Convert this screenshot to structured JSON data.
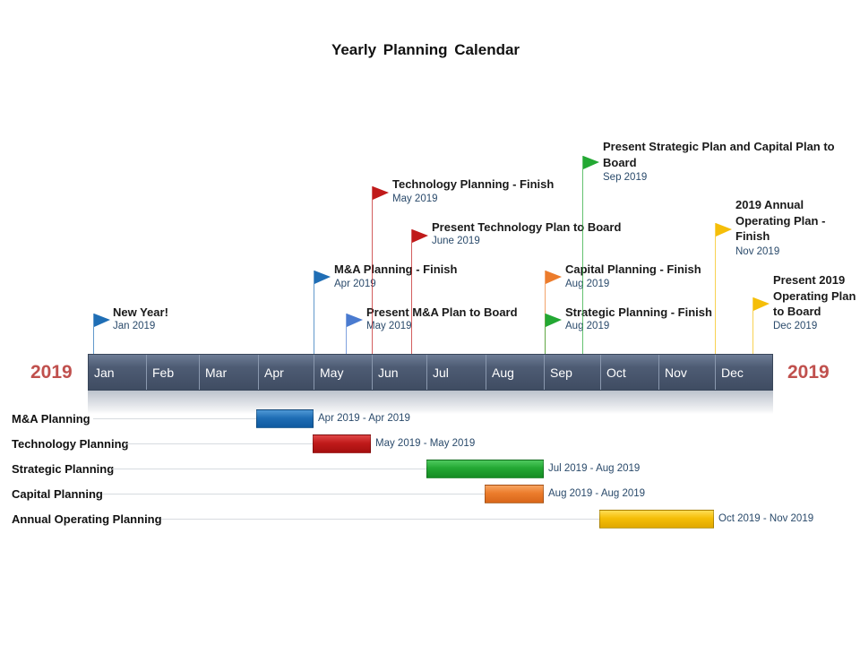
{
  "title": "Yearly Planning  Calendar",
  "year_left": "2019",
  "year_right": "2019",
  "months": [
    "Jan",
    "Feb",
    "Mar",
    "Apr",
    "May",
    "Jun",
    "Jul",
    "Aug",
    "Sep",
    "Oct",
    "Nov",
    "Dec"
  ],
  "colors": {
    "blue": "#1f6eb5",
    "light_blue": "#4a7bd0",
    "red": "#c01a1a",
    "green": "#23a833",
    "orange": "#ec7c2c",
    "yellow": "#f5be08"
  },
  "milestones": [
    {
      "title": "New Year!",
      "date": "Jan 2019",
      "color": "blue"
    },
    {
      "title": "M&A Planning - Finish",
      "date": "Apr 2019",
      "color": "blue"
    },
    {
      "title": "Present M&A Plan to Board",
      "date": "May 2019",
      "color": "light_blue"
    },
    {
      "title": "Technology Planning - Finish",
      "date": "May 2019",
      "color": "red"
    },
    {
      "title": "Present Technology Plan to Board",
      "date": "June 2019",
      "color": "red"
    },
    {
      "title": "Capital Planning - Finish",
      "date": "Aug 2019",
      "color": "orange"
    },
    {
      "title": "Strategic Planning - Finish",
      "date": "Aug 2019",
      "color": "green"
    },
    {
      "title": "Present Strategic Plan and Capital Plan to Board",
      "date": "Sep 2019",
      "color": "green"
    },
    {
      "title": "2019  Annual Operating Plan - Finish",
      "date": "Nov 2019",
      "color": "yellow"
    },
    {
      "title": "Present 2019 Operating Plan to Board",
      "date": "Dec 2019",
      "color": "yellow"
    }
  ],
  "tasks": [
    {
      "label": "M&A Planning",
      "range": "Apr 2019 - Apr 2019",
      "color": "blue",
      "start_month": 4,
      "end_month": 4
    },
    {
      "label": "Technology Planning",
      "range": "May 2019 - May 2019",
      "color": "red",
      "start_month": 5,
      "end_month": 5
    },
    {
      "label": "Strategic Planning",
      "range": "Jul 2019 - Aug 2019",
      "color": "green",
      "start_month": 7,
      "end_month": 8
    },
    {
      "label": "Capital Planning",
      "range": "Aug 2019 - Aug 2019",
      "color": "orange",
      "start_month": 8,
      "end_month": 8
    },
    {
      "label": "Annual Operating Planning",
      "range": "Oct 2019 - Nov 2019",
      "color": "yellow",
      "start_month": 10,
      "end_month": 11
    }
  ]
}
